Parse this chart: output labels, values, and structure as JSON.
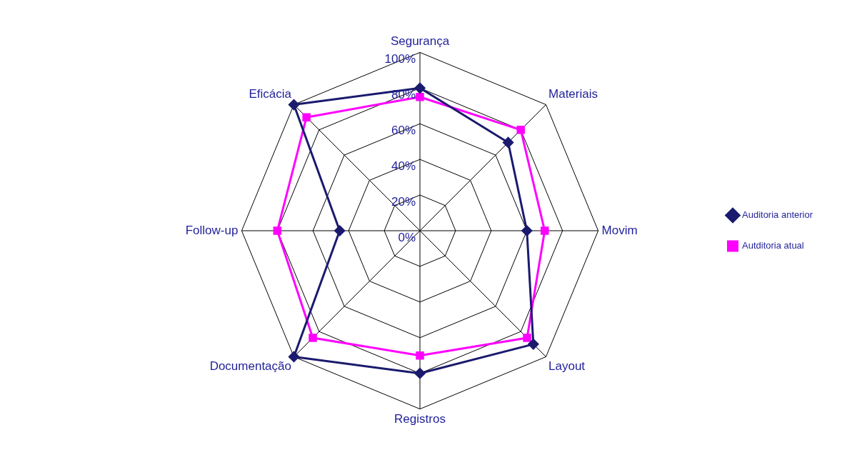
{
  "chart_data": {
    "type": "radar",
    "categories": [
      "Segurança",
      "Materiais",
      "Movim",
      "Layout",
      "Registros",
      "Documentação",
      "Follow-up",
      "Eficácia"
    ],
    "series": [
      {
        "name": "Auditoria anterior",
        "color": "#1a1a6e",
        "marker": "diamond",
        "values": [
          80,
          70,
          60,
          90,
          80,
          100,
          45,
          100
        ]
      },
      {
        "name": "Autditoria atual",
        "color": "#ff00ff",
        "marker": "square",
        "values": [
          75,
          80,
          70,
          85,
          70,
          85,
          80,
          90
        ]
      }
    ],
    "ylim": [
      0,
      100
    ],
    "yticks": [
      {
        "value": 0,
        "label": "0%"
      },
      {
        "value": 20,
        "label": "20%"
      },
      {
        "value": 40,
        "label": "40%"
      },
      {
        "value": 60,
        "label": "60%"
      },
      {
        "value": 80,
        "label": "80%"
      },
      {
        "value": 100,
        "label": "100%"
      }
    ],
    "grid": true,
    "legend": "right"
  }
}
